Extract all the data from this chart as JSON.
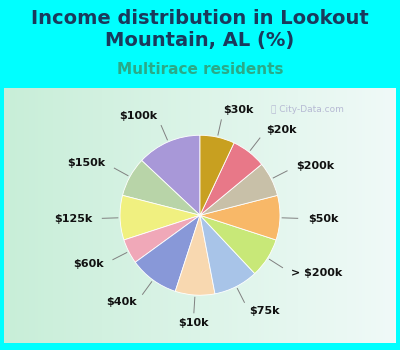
{
  "title": "Income distribution in Lookout\nMountain, AL (%)",
  "subtitle": "Multirace residents",
  "labels": [
    "$100k",
    "$150k",
    "$125k",
    "$60k",
    "$40k",
    "$10k",
    "$75k",
    "> $200k",
    "$50k",
    "$200k",
    "$20k",
    "$30k"
  ],
  "sizes": [
    13,
    8,
    9,
    5,
    10,
    8,
    9,
    8,
    9,
    7,
    7,
    7
  ],
  "colors": [
    "#a898d8",
    "#b8d4a8",
    "#f0f080",
    "#f0a8b8",
    "#8898d8",
    "#f8d8b0",
    "#a8c4e8",
    "#c8e878",
    "#f8b868",
    "#c8c0a8",
    "#e87888",
    "#c8a020"
  ],
  "bg_color": "#00ffff",
  "chart_bg_left": "#c8eed8",
  "chart_bg_right": "#f0faf8",
  "title_color": "#1a3a5c",
  "subtitle_color": "#2aaa88",
  "startangle": 90,
  "title_fontsize": 14,
  "subtitle_fontsize": 11,
  "label_fontsize": 8
}
